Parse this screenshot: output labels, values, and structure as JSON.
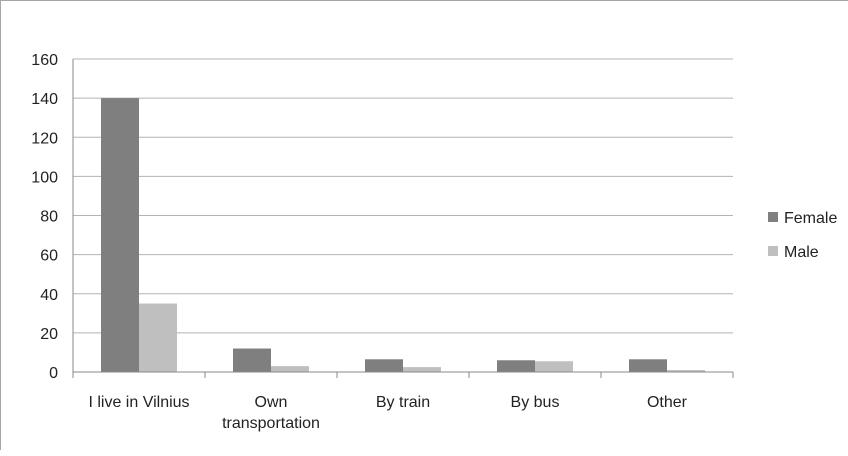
{
  "chart_data": {
    "type": "bar",
    "categories": [
      "I live in Vilnius",
      "Own transportation",
      "By train",
      "By bus",
      "Other"
    ],
    "category_lines": [
      [
        "I live in Vilnius"
      ],
      [
        "Own",
        "transportation"
      ],
      [
        "By train"
      ],
      [
        "By bus"
      ],
      [
        "Other"
      ]
    ],
    "series": [
      {
        "name": "Female",
        "values": [
          140,
          12,
          6.5,
          6,
          6.5
        ]
      },
      {
        "name": "Male",
        "values": [
          35,
          3,
          2.5,
          5.5,
          1
        ]
      }
    ],
    "ylim": [
      0,
      160
    ],
    "yticks": [
      0,
      20,
      40,
      60,
      80,
      100,
      120,
      140,
      160
    ],
    "grid": true,
    "legend_placement": "right",
    "colors": {
      "Female": "#7f7f7f",
      "Male": "#bfbfbf",
      "grid": "#b3b3b3",
      "axis": "#888888"
    }
  }
}
